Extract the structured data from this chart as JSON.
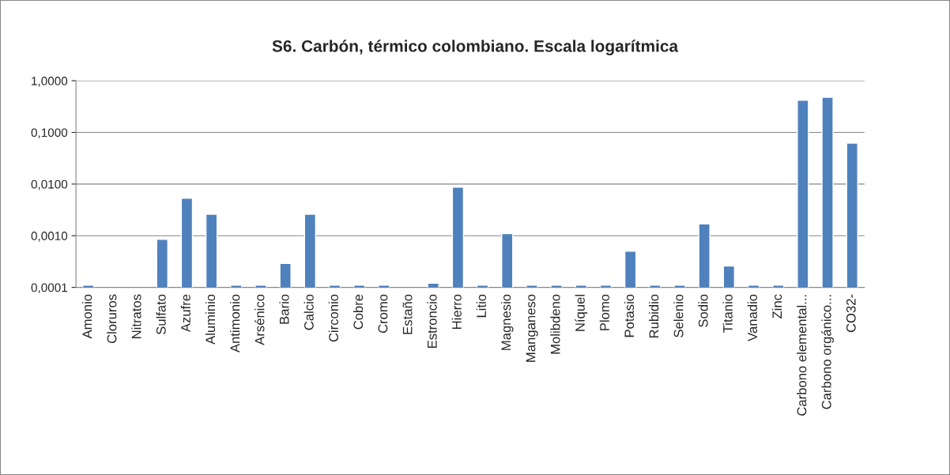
{
  "chart_data": {
    "type": "bar",
    "title": "S6. Carbón, térmico colombiano. Escala logarítmica",
    "categories": [
      "Amonio",
      "Cloruros",
      "Nitratos",
      "Sulfato",
      "Azufre",
      "Aluminio",
      "Antimonio",
      "Arsénico",
      "Bario",
      "Calcio",
      "Circonio",
      "Cobre",
      "Cromo",
      "Estaño",
      "Estroncio",
      "Hierro",
      "Litio",
      "Magnesio",
      "Manganeso",
      "Molibdeno",
      "Níquel",
      "Plomo",
      "Potasio",
      "Rubidio",
      "Selenio",
      "Sodio",
      "Titanio",
      "Vanadio",
      "Zinc",
      "Carbono elemental...",
      "Carbono orgánico...",
      "CO32-"
    ],
    "values": [
      0.00011,
      null,
      null,
      0.00085,
      0.0053,
      0.0026,
      0.00011,
      0.00011,
      0.00029,
      0.0026,
      0.00011,
      0.00011,
      0.00011,
      null,
      0.00012,
      0.0087,
      0.00011,
      0.0011,
      0.00011,
      0.00011,
      0.00011,
      0.00011,
      0.0005,
      0.00011,
      0.00011,
      0.0017,
      0.00026,
      0.00011,
      0.00011,
      0.42,
      0.48,
      0.062
    ],
    "color": "#4f81bd",
    "log": "y",
    "ylim": [
      0.0001,
      1
    ],
    "yticks": [
      {
        "value": 0.0001,
        "label": "0,0001"
      },
      {
        "value": 0.001,
        "label": "0,0010"
      },
      {
        "value": 0.01,
        "label": "0,0100"
      },
      {
        "value": 0.1,
        "label": "0,1000"
      },
      {
        "value": 1,
        "label": "1,0000"
      }
    ],
    "grid": "y",
    "legend": false
  }
}
